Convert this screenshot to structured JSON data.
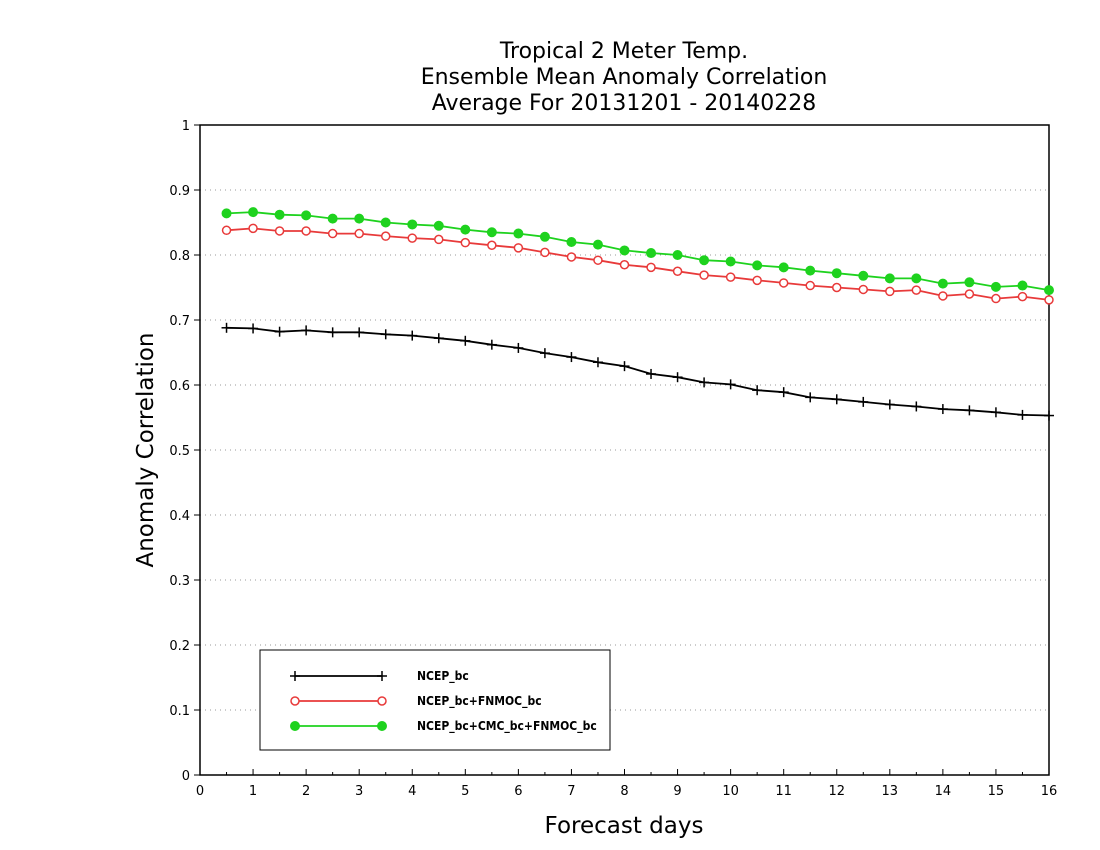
{
  "chart_data": {
    "type": "line",
    "title": [
      "Tropical 2 Meter Temp.",
      "Ensemble Mean Anomaly Correlation",
      "Average For 20131201 - 20140228"
    ],
    "xlabel": "Forecast days",
    "ylabel": "Anomaly Correlation",
    "xlim": [
      0,
      16
    ],
    "ylim": [
      0,
      1
    ],
    "x_ticks": [
      "0",
      "1",
      "2",
      "3",
      "4",
      "5",
      "6",
      "7",
      "8",
      "9",
      "10",
      "11",
      "12",
      "13",
      "14",
      "15",
      "16"
    ],
    "y_ticks": [
      "0",
      "0.1",
      "0.2",
      "0.3",
      "0.4",
      "0.5",
      "0.6",
      "0.7",
      "0.8",
      "0.9",
      "1"
    ],
    "grid": "horizontal dotted",
    "legend_position": "bottom-left",
    "x": [
      0.5,
      1,
      1.5,
      2,
      2.5,
      3,
      3.5,
      4,
      4.5,
      5,
      5.5,
      6,
      6.5,
      7,
      7.5,
      8,
      8.5,
      9,
      9.5,
      10,
      10.5,
      11,
      11.5,
      12,
      12.5,
      13,
      13.5,
      14,
      14.5,
      15,
      15.5,
      16
    ],
    "series": [
      {
        "name": "NCEP_bc",
        "color": "#000000",
        "marker": "plus",
        "values": [
          0.688,
          0.687,
          0.682,
          0.684,
          0.681,
          0.681,
          0.678,
          0.676,
          0.672,
          0.668,
          0.662,
          0.657,
          0.649,
          0.643,
          0.635,
          0.629,
          0.617,
          0.612,
          0.604,
          0.601,
          0.592,
          0.589,
          0.581,
          0.578,
          0.574,
          0.57,
          0.567,
          0.563,
          0.561,
          0.558,
          0.554,
          0.553
        ]
      },
      {
        "name": "NCEP_bc+FNMOC_bc",
        "color": "#e83a3a",
        "marker": "open-circle",
        "values": [
          0.838,
          0.841,
          0.837,
          0.837,
          0.833,
          0.833,
          0.829,
          0.826,
          0.824,
          0.819,
          0.815,
          0.811,
          0.804,
          0.797,
          0.792,
          0.785,
          0.781,
          0.775,
          0.769,
          0.766,
          0.761,
          0.757,
          0.753,
          0.75,
          0.747,
          0.744,
          0.746,
          0.737,
          0.74,
          0.733,
          0.736,
          0.731
        ]
      },
      {
        "name": "NCEP_bc+CMC_bc+FNMOC_bc",
        "color": "#1ed21e",
        "marker": "filled-circle",
        "values": [
          0.864,
          0.866,
          0.862,
          0.861,
          0.856,
          0.856,
          0.85,
          0.847,
          0.845,
          0.839,
          0.835,
          0.833,
          0.828,
          0.82,
          0.816,
          0.807,
          0.803,
          0.8,
          0.792,
          0.79,
          0.784,
          0.781,
          0.776,
          0.772,
          0.768,
          0.764,
          0.764,
          0.756,
          0.758,
          0.751,
          0.753,
          0.746
        ]
      }
    ]
  }
}
